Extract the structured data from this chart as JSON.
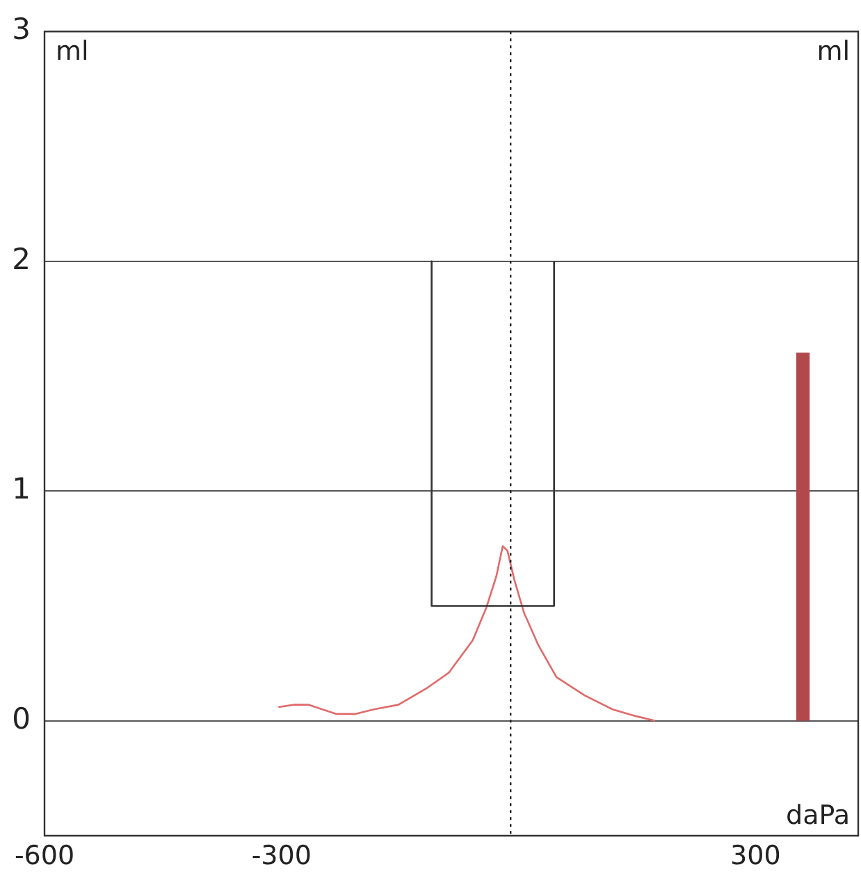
{
  "chart_data": {
    "type": "line",
    "xlabel": "daPa",
    "ylabel": "ml",
    "y2label": "ml",
    "xlim": [
      -600,
      430
    ],
    "xticks": [
      -600,
      -300,
      300
    ],
    "ylim": [
      -0.5,
      3
    ],
    "yticks": [
      0,
      1,
      2,
      3
    ],
    "grid": "y",
    "legend": false,
    "marker": "none",
    "series": [
      {
        "color": "#333333",
        "x": [
          -110,
          -110,
          45,
          45
        ],
        "values": [
          2,
          0.5,
          0.5,
          2
        ]
      },
      {
        "color": "#e06a6a",
        "x": [
          -304,
          -284,
          -266,
          -231,
          -206,
          -183,
          -152,
          -117,
          -88,
          -58,
          -41,
          -28,
          -20,
          -14,
          -5,
          7,
          25,
          48,
          84,
          119,
          149,
          173
        ],
        "values": [
          0.06,
          0.07,
          0.07,
          0.03,
          0.03,
          0.05,
          0.07,
          0.14,
          0.21,
          0.35,
          0.49,
          0.63,
          0.76,
          0.74,
          0.61,
          0.47,
          0.33,
          0.19,
          0.11,
          0.05,
          0.02,
          0
        ]
      },
      {
        "type": "bar",
        "color": "#b0484c",
        "x": [
          360
        ],
        "values": [
          1.6
        ]
      }
    ],
    "ref_lines": [
      {
        "axis": "x",
        "value": -10,
        "color": "#222222",
        "line_style": "dotted"
      }
    ]
  }
}
